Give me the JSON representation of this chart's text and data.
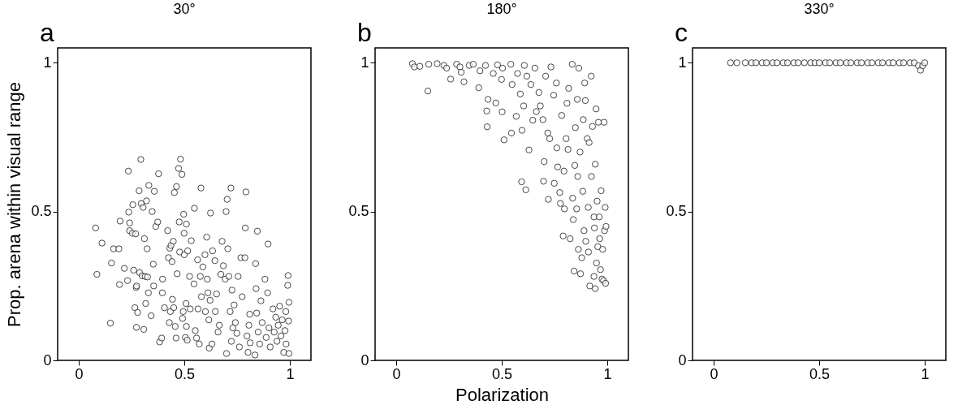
{
  "chart_data": [
    {
      "type": "scatter",
      "title": "30°",
      "annotations": [
        "a"
      ],
      "ylabel": "Prop. arena within visual range",
      "xlim": [
        -0.1,
        1.1
      ],
      "ylim": [
        0,
        1.05
      ],
      "xticks": [
        0,
        0.5,
        1
      ],
      "yticks": [
        0,
        0.5,
        1
      ],
      "grid": false,
      "marker": "circle",
      "x": [
        0.08,
        0.086,
        0.11,
        0.15,
        0.155,
        0.165,
        0.19,
        0.193,
        0.196,
        0.216,
        0.231,
        0.235,
        0.237,
        0.241,
        0.241,
        0.254,
        0.256,
        0.26,
        0.266,
        0.27,
        0.272,
        0.273,
        0.274,
        0.279,
        0.286,
        0.288,
        0.294,
        0.296,
        0.3,
        0.305,
        0.308,
        0.311,
        0.315,
        0.321,
        0.324,
        0.326,
        0.33,
        0.317,
        0.332,
        0.343,
        0.348,
        0.353,
        0.355,
        0.358,
        0.365,
        0.374,
        0.378,
        0.383,
        0.393,
        0.396,
        0.397,
        0.406,
        0.421,
        0.425,
        0.429,
        0.431,
        0.434,
        0.437,
        0.442,
        0.444,
        0.448,
        0.45,
        0.453,
        0.457,
        0.461,
        0.463,
        0.466,
        0.473,
        0.476,
        0.478,
        0.482,
        0.489,
        0.492,
        0.495,
        0.497,
        0.499,
        0.5,
        0.505,
        0.508,
        0.51,
        0.514,
        0.516,
        0.51,
        0.525,
        0.528,
        0.533,
        0.546,
        0.548,
        0.552,
        0.558,
        0.563,
        0.565,
        0.571,
        0.576,
        0.579,
        0.581,
        0.588,
        0.598,
        0.6,
        0.606,
        0.609,
        0.612,
        0.616,
        0.618,
        0.622,
        0.624,
        0.631,
        0.634,
        0.645,
        0.647,
        0.653,
        0.66,
        0.666,
        0.673,
        0.679,
        0.685,
        0.694,
        0.698,
        0.7,
        0.703,
        0.706,
        0.711,
        0.717,
        0.721,
        0.723,
        0.726,
        0.73,
        0.736,
        0.742,
        0.749,
        0.755,
        0.761,
        0.768,
        0.774,
        0.787,
        0.789,
        0.792,
        0.797,
        0.802,
        0.806,
        0.81,
        0.812,
        0.835,
        0.838,
        0.84,
        0.843,
        0.846,
        0.85,
        0.857,
        0.863,
        0.869,
        0.882,
        0.888,
        0.895,
        0.897,
        0.901,
        0.907,
        0.92,
        0.926,
        0.933,
        0.939,
        0.945,
        0.952,
        0.958,
        0.964,
        0.971,
        0.977,
        0.981,
        0.982,
        0.99,
        0.992,
        0.994,
        0.996,
        0.996
      ],
      "series": [
        {
          "color": "#333333",
          "values": [
            0.445,
            0.289,
            0.394,
            0.125,
            0.327,
            0.375,
            0.375,
            0.255,
            0.468,
            0.309,
            0.268,
            0.636,
            0.498,
            0.462,
            0.436,
            0.427,
            0.523,
            0.303,
            0.177,
            0.425,
            0.245,
            0.111,
            0.25,
            0.161,
            0.57,
            0.295,
            0.675,
            0.527,
            0.284,
            0.514,
            0.104,
            0.409,
            0.282,
            0.536,
            0.375,
            0.28,
            0.227,
            0.191,
            0.588,
            0.15,
            0.5,
            0.323,
            0.25,
            0.568,
            0.45,
            0.465,
            0.627,
            0.062,
            0.075,
            0.227,
            0.273,
            0.177,
            0.436,
            0.345,
            0.127,
            0.377,
            0.164,
            0.386,
            0.332,
            0.205,
            0.4,
            0.177,
            0.564,
            0.114,
            0.075,
            0.584,
            0.291,
            0.645,
            0.465,
            0.364,
            0.676,
            0.625,
            0.141,
            0.164,
            0.491,
            0.427,
            0.355,
            0.077,
            0.191,
            0.458,
            0.068,
            0.368,
            0.114,
            0.282,
            0.173,
            0.402,
            0.257,
            0.511,
            0.1,
            0.075,
            0.338,
            0.173,
            0.055,
            0.282,
            0.579,
            0.214,
            0.314,
            0.355,
            0.164,
            0.414,
            0.273,
            0.227,
            0.136,
            0.041,
            0.202,
            0.495,
            0.055,
            0.368,
            0.335,
            0.164,
            0.223,
            0.095,
            0.118,
            0.289,
            0.4,
            0.318,
            0.273,
            0.5,
            0.023,
            0.541,
            0.375,
            0.282,
            0.164,
            0.579,
            0.064,
            0.236,
            0.109,
            0.186,
            0.127,
            0.091,
            0.282,
            0.045,
            0.345,
            0.214,
            0.345,
            0.445,
            0.566,
            0.082,
            0.027,
            0.118,
            0.155,
            0.059,
            0.018,
            0.325,
            0.241,
            0.159,
            0.434,
            0.095,
            0.055,
            0.2,
            0.127,
            0.273,
            0.077,
            0.227,
            0.391,
            0.109,
            0.045,
            0.173,
            0.095,
            0.145,
            0.064,
            0.118,
            0.182,
            0.082,
            0.136,
            0.027,
            0.1,
            0.164,
            0.055,
            0.252,
            0.285,
            0.132,
            0.195,
            0.023
          ]
        }
      ]
    },
    {
      "type": "scatter",
      "title": "180°",
      "annotations": [
        "b"
      ],
      "xlabel": "Polarization",
      "xlim": [
        -0.1,
        1.1
      ],
      "ylim": [
        0,
        1.05
      ],
      "xticks": [
        0,
        0.5,
        1
      ],
      "yticks": [
        0,
        0.5,
        1
      ],
      "grid": false,
      "marker": "circle",
      "x": [
        0.077,
        0.086,
        0.112,
        0.15,
        0.154,
        0.194,
        0.226,
        0.239,
        0.258,
        0.286,
        0.302,
        0.308,
        0.321,
        0.346,
        0.365,
        0.391,
        0.397,
        0.423,
        0.429,
        0.431,
        0.435,
        0.46,
        0.472,
        0.48,
        0.499,
        0.504,
        0.502,
        0.511,
        0.543,
        0.546,
        0.549,
        0.569,
        0.575,
        0.588,
        0.594,
        0.596,
        0.604,
        0.607,
        0.614,
        0.619,
        0.629,
        0.638,
        0.647,
        0.657,
        0.664,
        0.676,
        0.683,
        0.695,
        0.698,
        0.701,
        0.708,
        0.721,
        0.718,
        0.727,
        0.733,
        0.746,
        0.749,
        0.759,
        0.761,
        0.765,
        0.775,
        0.778,
        0.784,
        0.791,
        0.795,
        0.797,
        0.805,
        0.809,
        0.814,
        0.817,
        0.824,
        0.834,
        0.836,
        0.839,
        0.843,
        0.846,
        0.849,
        0.855,
        0.858,
        0.86,
        0.863,
        0.865,
        0.871,
        0.873,
        0.879,
        0.884,
        0.886,
        0.89,
        0.893,
        0.896,
        0.898,
        0.905,
        0.91,
        0.911,
        0.914,
        0.917,
        0.924,
        0.925,
        0.93,
        0.937,
        0.937,
        0.939,
        0.943,
        0.943,
        0.947,
        0.949,
        0.952,
        0.955,
        0.958,
        0.962,
        0.964,
        0.968,
        0.971,
        0.975,
        0.978,
        0.982,
        0.985,
        0.987,
        0.99,
        0.992,
        0.994
      ],
      "series": [
        {
          "color": "#333333",
          "values": [
            0.997,
            0.986,
            0.988,
            0.905,
            0.995,
            0.997,
            0.991,
            0.982,
            0.945,
            0.995,
            0.986,
            0.968,
            0.936,
            0.991,
            0.995,
            0.916,
            0.973,
            0.991,
            0.838,
            0.785,
            0.877,
            0.964,
            0.865,
            0.993,
            0.944,
            0.982,
            0.835,
            0.741,
            0.995,
            0.764,
            0.927,
            0.82,
            0.964,
            0.895,
            0.6,
            0.773,
            0.855,
            0.991,
            0.573,
            0.955,
            0.707,
            0.927,
            0.807,
            0.982,
            0.836,
            0.9,
            0.855,
            0.809,
            0.602,
            0.668,
            0.955,
            0.541,
            0.764,
            0.745,
            0.986,
            0.891,
            0.595,
            0.932,
            0.714,
            0.65,
            0.564,
            0.527,
            0.823,
            0.418,
            0.636,
            0.509,
            0.745,
            0.864,
            0.709,
            0.914,
            0.409,
            0.995,
            0.545,
            0.473,
            0.3,
            0.655,
            0.782,
            0.509,
            0.877,
            0.618,
            0.373,
            0.982,
            0.7,
            0.291,
            0.345,
            0.568,
            0.809,
            0.436,
            0.932,
            0.873,
            0.4,
            0.745,
            0.514,
            0.364,
            0.732,
            0.25,
            0.955,
            0.618,
            0.786,
            0.282,
            0.482,
            0.445,
            0.241,
            0.659,
            0.845,
            0.327,
            0.535,
            0.382,
            0.8,
            0.482,
            0.409,
            0.305,
            0.57,
            0.273,
            0.373,
            0.268,
            0.8,
            0.436,
            0.514,
            0.259,
            0.45
          ]
        }
      ]
    },
    {
      "type": "scatter",
      "title": "330°",
      "annotations": [
        "c"
      ],
      "xlim": [
        -0.1,
        1.1
      ],
      "ylim": [
        0,
        1.05
      ],
      "xticks": [
        0,
        0.5,
        1
      ],
      "yticks": [
        0,
        0.5,
        1
      ],
      "grid": false,
      "marker": "circle",
      "x": [
        0.08,
        0.11,
        0.15,
        0.18,
        0.2,
        0.23,
        0.25,
        0.28,
        0.3,
        0.33,
        0.35,
        0.38,
        0.4,
        0.43,
        0.46,
        0.48,
        0.5,
        0.53,
        0.55,
        0.58,
        0.6,
        0.63,
        0.65,
        0.68,
        0.7,
        0.73,
        0.75,
        0.78,
        0.8,
        0.83,
        0.85,
        0.88,
        0.9,
        0.93,
        0.95,
        0.97,
        0.98,
        0.99,
        1.0
      ],
      "series": [
        {
          "color": "#333333",
          "values": [
            1,
            1,
            1,
            1,
            1,
            1,
            1,
            1,
            1,
            1,
            1,
            1,
            1,
            1,
            1,
            1,
            1,
            1,
            1,
            1,
            1,
            1,
            1,
            1,
            1,
            1,
            1,
            1,
            1,
            1,
            1,
            1,
            1,
            1,
            1,
            0.99,
            0.975,
            0.99,
            1
          ]
        }
      ]
    }
  ]
}
